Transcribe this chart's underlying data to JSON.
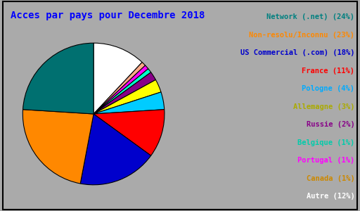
{
  "title": "Acces par pays pour Decembre 2018",
  "labels": [
    "Network (.net)",
    "Non-resolu/Inconnu",
    "US Commercial (.com)",
    "France",
    "Pologne",
    "Allemagne",
    "Russie",
    "Belgique",
    "Portugal",
    "Canada",
    "Autre"
  ],
  "percentages": [
    24,
    23,
    18,
    11,
    4,
    3,
    2,
    1,
    1,
    1,
    12
  ],
  "pie_colors": [
    "#007070",
    "#ff8800",
    "#0000cc",
    "#ff0000",
    "#00ccff",
    "#ffff00",
    "#880088",
    "#00ffcc",
    "#ff00ff",
    "#ffaa88",
    "#ffffff"
  ],
  "legend_text_colors": [
    "#008080",
    "#ff8800",
    "#0000cc",
    "#ff0000",
    "#00aaff",
    "#aaaa00",
    "#880088",
    "#00ccaa",
    "#ff00ff",
    "#cc8800",
    "#ffffff"
  ],
  "legend_labels": [
    "Network (.net) (24%)",
    "Non-resolu/Inconnu (23%)",
    "US Commercial (.com) (18%)",
    "France (11%)",
    "Pologne (4%)",
    "Allemagne (3%)",
    "Russie (2%)",
    "Belgique (1%)",
    "Portugal (1%)",
    "Canada (1%)",
    "Autre (12%)"
  ],
  "background_color": "#aaaaaa",
  "title_color": "#0000ff",
  "title_fontsize": 10,
  "legend_fontsize": 7.5,
  "startangle": 90,
  "pie_start_order": [
    10,
    9,
    8,
    7,
    6,
    5,
    4,
    3,
    2,
    1,
    0
  ]
}
